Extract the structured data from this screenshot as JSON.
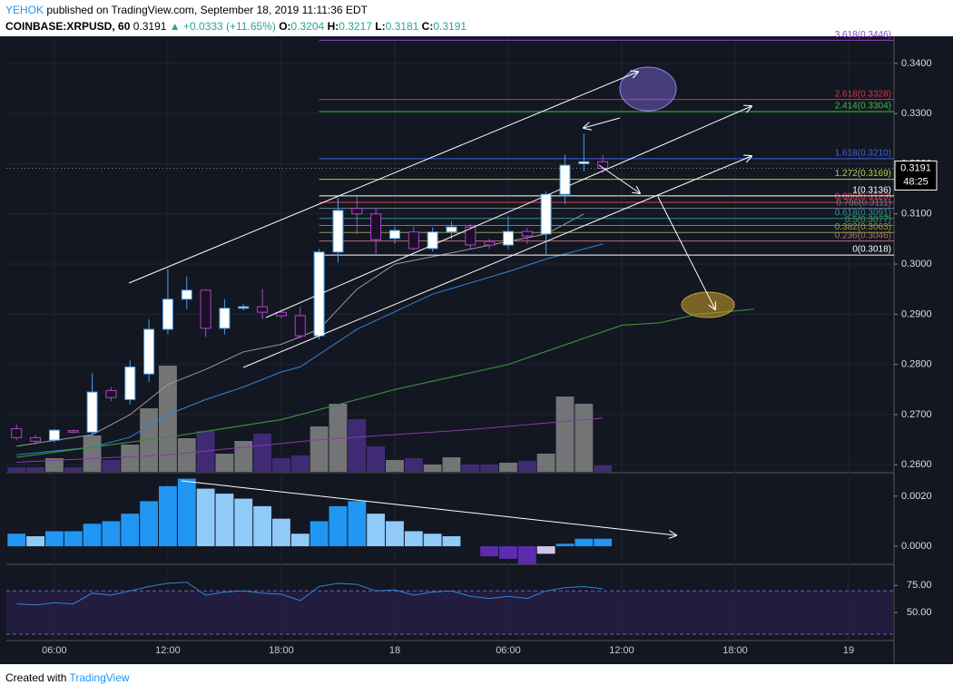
{
  "header": {
    "author": "YEHOK",
    "published": "published on TradingView.com, September 18, 2019 11:11:36 EDT",
    "symbol": "COINBASE:XRPUSD, 60",
    "price": "0.3191",
    "change": "▲ +0.0333 (+11.65%)",
    "o_label": "O:",
    "o": "0.3204",
    "h_label": "H:",
    "h": "0.3217",
    "l_label": "L:",
    "l": "0.3181",
    "c_label": "C:",
    "c": "0.3191"
  },
  "footer": {
    "created": "Created with",
    "brand": "TradingView"
  },
  "chart_data": {
    "type": "candlestick",
    "x": [
      4,
      5,
      6,
      7,
      8,
      9,
      10,
      11,
      12,
      13,
      14,
      15,
      16,
      17,
      18,
      19,
      20,
      21,
      22,
      23,
      24,
      25,
      26,
      27,
      28,
      29,
      30,
      31,
      32,
      33,
      34,
      35
    ],
    "open": [
      0.2672,
      0.2654,
      0.2649,
      0.2668,
      0.2665,
      0.2748,
      0.273,
      0.2781,
      0.287,
      0.293,
      0.2948,
      0.2872,
      0.2912,
      0.2915,
      0.2904,
      0.2897,
      0.2857,
      0.3024,
      0.3111,
      0.31,
      0.3051,
      0.3064,
      0.3031,
      0.3064,
      0.3074,
      0.3045,
      0.3038,
      0.3065,
      0.306,
      0.3139,
      0.32,
      0.3204
    ],
    "high": [
      0.268,
      0.266,
      0.2671,
      0.267,
      0.2782,
      0.2755,
      0.2808,
      0.289,
      0.299,
      0.2975,
      0.295,
      0.293,
      0.292,
      0.295,
      0.291,
      0.2915,
      0.303,
      0.3132,
      0.3135,
      0.3112,
      0.3075,
      0.3075,
      0.3073,
      0.3085,
      0.308,
      0.305,
      0.3095,
      0.3072,
      0.3145,
      0.3218,
      0.326,
      0.3217
    ],
    "low": [
      0.2649,
      0.264,
      0.2645,
      0.2663,
      0.266,
      0.2727,
      0.272,
      0.2765,
      0.286,
      0.291,
      0.2855,
      0.286,
      0.2908,
      0.289,
      0.2892,
      0.2852,
      0.285,
      0.3003,
      0.306,
      0.302,
      0.304,
      0.3028,
      0.3025,
      0.305,
      0.303,
      0.303,
      0.303,
      0.304,
      0.302,
      0.312,
      0.3185,
      0.3181
    ],
    "close": [
      0.2654,
      0.2647,
      0.2669,
      0.2665,
      0.2745,
      0.2734,
      0.2795,
      0.287,
      0.293,
      0.2948,
      0.2872,
      0.2912,
      0.2915,
      0.2904,
      0.2897,
      0.2857,
      0.3024,
      0.3107,
      0.31,
      0.3049,
      0.3067,
      0.3031,
      0.3064,
      0.3074,
      0.3038,
      0.3038,
      0.3065,
      0.3056,
      0.3139,
      0.3197,
      0.3204,
      0.3191
    ],
    "colors": {
      "up_fill": "#ffffff",
      "up_line": "#4a9ee8",
      "down_fill": "#1a1028",
      "down_line": "#b044c8"
    },
    "volume": {
      "values": [
        5,
        5,
        15,
        5,
        40,
        13,
        30,
        70,
        117,
        37,
        45,
        20,
        34,
        42,
        15,
        18,
        50,
        75,
        58,
        28,
        13,
        15,
        8,
        16,
        8,
        8,
        10,
        12,
        20,
        83,
        75,
        7
      ],
      "up_color": "#8c8c8c",
      "down_color": "#4e2f8a"
    },
    "xlim": [
      3.46,
      50.4
    ],
    "xticks": [
      {
        "value": 6,
        "label": "06:00"
      },
      {
        "value": 12,
        "label": "12:00"
      },
      {
        "value": 18,
        "label": "18:00"
      },
      {
        "value": 24,
        "label": "18"
      },
      {
        "value": 30,
        "label": "06:00"
      },
      {
        "value": 36,
        "label": "12:00"
      },
      {
        "value": 42,
        "label": "18:00"
      },
      {
        "value": 48,
        "label": "19"
      }
    ],
    "ylim": [
      0.2586,
      0.3454
    ],
    "yticks": [
      {
        "value": 0.26,
        "label": "0.2600"
      },
      {
        "value": 0.27,
        "label": "0.2700"
      },
      {
        "value": 0.28,
        "label": "0.2800"
      },
      {
        "value": 0.29,
        "label": "0.2900"
      },
      {
        "value": 0.3,
        "label": "0.3000"
      },
      {
        "value": 0.31,
        "label": "0.3100"
      },
      {
        "value": 0.32,
        "label": "0.3200"
      },
      {
        "value": 0.33,
        "label": "0.3300"
      },
      {
        "value": 0.34,
        "label": "0.3400"
      }
    ],
    "grid": true,
    "countdown": "48:25",
    "moving_averages": [
      {
        "color": "#9a9a9a",
        "x": [
          4,
          8,
          10,
          12,
          14,
          16,
          18,
          20,
          22,
          24,
          28,
          32,
          34
        ],
        "values": [
          0.2637,
          0.266,
          0.27,
          0.276,
          0.279,
          0.2825,
          0.284,
          0.287,
          0.295,
          0.3,
          0.303,
          0.306,
          0.31
        ]
      },
      {
        "color": "#2f86d8",
        "x": [
          4,
          8,
          10,
          12,
          14,
          16,
          18,
          19,
          22,
          26,
          30,
          32,
          35
        ],
        "values": [
          0.262,
          0.2635,
          0.2655,
          0.27,
          0.273,
          0.2755,
          0.2785,
          0.2795,
          0.287,
          0.294,
          0.2985,
          0.301,
          0.304
        ]
      },
      {
        "color": "#3c8a3c",
        "x": [
          4,
          12,
          18,
          24,
          30,
          36,
          38,
          40,
          43
        ],
        "values": [
          0.2615,
          0.2655,
          0.269,
          0.275,
          0.28,
          0.2878,
          0.2883,
          0.29,
          0.291
        ]
      },
      {
        "color": "#8a3aa8",
        "x": [
          4,
          12,
          20,
          28,
          35
        ],
        "values": [
          0.2605,
          0.262,
          0.265,
          0.267,
          0.2693
        ]
      }
    ],
    "fib_levels": [
      {
        "label": "0(0.3018)",
        "value": 0.3018,
        "color": "#ffffff"
      },
      {
        "label": "0.236(0.3046)",
        "value": 0.3046,
        "color": "#b07070"
      },
      {
        "label": "0.382(0.3063)",
        "value": 0.3063,
        "color": "#9a9a40"
      },
      {
        "label": "0.5(0.3077)",
        "value": 0.3077,
        "color": "#40a040"
      },
      {
        "label": "0.618(0.3091)",
        "value": 0.3091,
        "color": "#309090"
      },
      {
        "label": "0.786(0.3111)",
        "value": 0.3111,
        "color": "#7080a0"
      },
      {
        "label": "0.886(0.3123)",
        "value": 0.3123,
        "color": "#e04040"
      },
      {
        "label": "1(0.3136)",
        "value": 0.3136,
        "color": "#ffffff"
      },
      {
        "label": "1.272(0.3169)",
        "value": 0.3169,
        "color": "#b0d040"
      },
      {
        "label": "1.618(0.3210)",
        "value": 0.321,
        "color": "#4060e0"
      },
      {
        "label": "2.414(0.3304)",
        "value": 0.3304,
        "color": "#40c040"
      },
      {
        "label": "2.618(0.3328)",
        "value": 0.3328,
        "color": "#e03040"
      },
      {
        "label": "3.618(0.3446)",
        "value": 0.3446,
        "color": "#9040d0"
      }
    ],
    "macd": {
      "ylim": [
        -0.00065,
        0.0029
      ],
      "yticks": [
        {
          "value": 0,
          "label": "0.0000"
        },
        {
          "value": 0.002,
          "label": "0.0020"
        }
      ],
      "values": [
        0.0005,
        0.0004,
        0.0006,
        0.0006,
        0.0009,
        0.001,
        0.0013,
        0.0018,
        0.0024,
        0.0027,
        0.0023,
        0.0021,
        0.0019,
        0.0016,
        0.0011,
        0.0005,
        0.001,
        0.0016,
        0.0018,
        0.0013,
        0.001,
        0.0006,
        0.0005,
        0.0004,
        0,
        -0.0004,
        -0.0005,
        -0.0007,
        -0.0003,
        0.0001,
        0.0003,
        0.0003
      ],
      "colors": {
        "pos_rise": "#2196f3",
        "pos_fall": "#90caf9",
        "neg_fall": "#5b2cb0",
        "neg_rise": "#d1c4e9"
      }
    },
    "rsi": {
      "ylim": [
        25,
        92
      ],
      "yticks": [
        {
          "value": 50,
          "label": "50.00"
        },
        {
          "value": 75,
          "label": "75.00"
        }
      ],
      "band": [
        30,
        70
      ],
      "color": "#2f86d8",
      "values": [
        58,
        57,
        59,
        58,
        68,
        66,
        70,
        74,
        77,
        78,
        66,
        69,
        70,
        68,
        67,
        61,
        74,
        77,
        76,
        70,
        71,
        66,
        69,
        70,
        65,
        63,
        65,
        63,
        70,
        73,
        74,
        72
      ]
    }
  }
}
